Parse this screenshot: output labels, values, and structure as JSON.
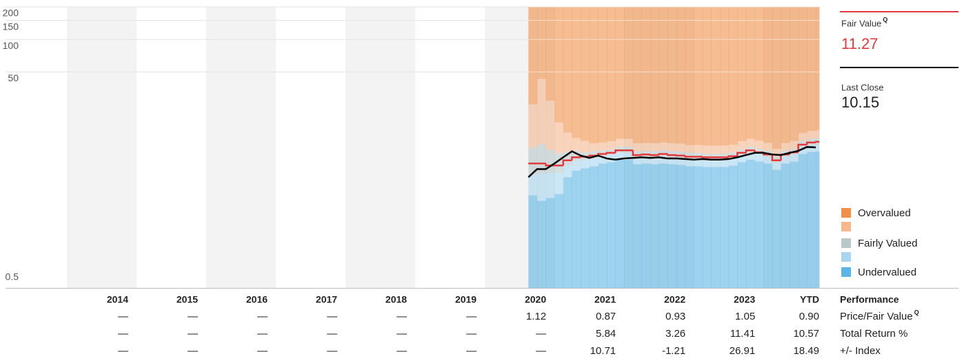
{
  "chart_data": {
    "type": "valuation",
    "ylog": true,
    "ylim": [
      0.5,
      200
    ],
    "yticks": [
      0.5,
      50,
      100,
      150,
      200
    ],
    "grid": true,
    "xlim": [
      2014,
      2024.8
    ],
    "x": [
      2020.625,
      2020.75,
      2020.875,
      2021,
      2021.125,
      2021.25,
      2021.375,
      2021.5,
      2021.625,
      2021.75,
      2021.875,
      2022,
      2022.125,
      2022.25,
      2022.375,
      2022.5,
      2022.625,
      2022.75,
      2022.875,
      2023,
      2023.125,
      2023.25,
      2023.375,
      2023.5,
      2023.625,
      2023.75,
      2023.875,
      2024,
      2024.125,
      2024.25,
      2024.375,
      2024.5,
      2024.625,
      2024.75
    ],
    "price": {
      "color": "#000000",
      "values": [
        5.3,
        6.3,
        6.3,
        7.1,
        8.1,
        9.2,
        8.4,
        8.0,
        8.4,
        7.9,
        7.7,
        7.9,
        8.0,
        8.1,
        8.0,
        8.1,
        7.9,
        7.9,
        7.8,
        7.7,
        7.8,
        7.7,
        7.7,
        7.8,
        8.1,
        8.5,
        8.9,
        8.9,
        8.6,
        8.5,
        8.9,
        9.3,
        10.1,
        10.0
      ]
    },
    "fair_value": {
      "color": "#e5383b",
      "values": [
        7.1,
        7.1,
        6.8,
        6.8,
        7.6,
        8.1,
        8.2,
        8.4,
        8.7,
        8.9,
        9.4,
        9.4,
        8.5,
        8.6,
        8.5,
        8.7,
        8.5,
        8.4,
        8.2,
        8.2,
        8.1,
        8.1,
        8.1,
        8.3,
        8.9,
        9.4,
        9.0,
        8.6,
        7.6,
        8.6,
        9.0,
        10.6,
        11.1,
        11.27
      ]
    },
    "thresholds": [
      [
        3.6,
        3.2,
        3.4,
        3.7,
        5.3,
        6.1,
        6.4,
        6.7,
        7.1,
        7.3,
        7.7,
        7.7,
        7.0,
        7.1,
        7.0,
        7.1,
        7.0,
        6.9,
        6.7,
        6.7,
        6.6,
        6.6,
        6.6,
        6.8,
        7.3,
        7.7,
        7.4,
        7.1,
        6.2,
        7.1,
        7.4,
        8.7,
        9.1,
        9.2
      ],
      [
        5.7,
        5.7,
        5.8,
        5.8,
        6.8,
        7.5,
        7.6,
        7.9,
        8.3,
        8.5,
        8.9,
        8.9,
        8.1,
        8.2,
        8.1,
        8.3,
        8.1,
        8.0,
        7.8,
        7.8,
        7.7,
        7.7,
        7.7,
        7.9,
        8.5,
        8.9,
        8.6,
        8.2,
        7.2,
        8.2,
        8.6,
        10.1,
        10.5,
        10.7
      ],
      [
        9.9,
        10.7,
        9.5,
        8.8,
        9.1,
        9.3,
        9.0,
        9.2,
        9.4,
        9.6,
        10.2,
        10.2,
        9.2,
        9.3,
        9.2,
        9.4,
        9.2,
        9.1,
        8.9,
        8.9,
        8.7,
        8.7,
        8.7,
        9.0,
        9.6,
        10.2,
        9.7,
        9.3,
        8.2,
        9.3,
        9.7,
        11.4,
        12.0,
        12.2
      ],
      [
        25,
        43,
        27,
        17,
        13.7,
        12.2,
        11.5,
        10.9,
        11.1,
        11.4,
        12.0,
        12.0,
        10.9,
        11.0,
        10.9,
        11.1,
        10.9,
        10.8,
        10.5,
        10.5,
        10.4,
        10.4,
        10.4,
        10.6,
        11.4,
        12.0,
        11.5,
        11.0,
        9.7,
        11.0,
        11.5,
        13.6,
        14.2,
        14.4
      ]
    ],
    "bands": [
      {
        "name": "Undervalued",
        "color": "#5db5e6"
      },
      {
        "name": null,
        "color": "#a9d5ef"
      },
      {
        "name": "Fairly Valued",
        "color": "#b9c8c9"
      },
      {
        "name": null,
        "color": "#f5b88f"
      },
      {
        "name": "Overvalued",
        "color": "#f0914b"
      }
    ]
  },
  "summary": {
    "fair_value": {
      "label": "Fair Value",
      "badge": "Q",
      "value": "11.27"
    },
    "last_close": {
      "label": "Last Close",
      "value": "10.15"
    }
  },
  "table": {
    "title": "Performance",
    "columns": [
      "2014",
      "2015",
      "2016",
      "2017",
      "2018",
      "2019",
      "2020",
      "2021",
      "2022",
      "2023",
      "YTD"
    ],
    "rows": [
      {
        "label": "Price/Fair Value",
        "badge": "Q",
        "cells": [
          "—",
          "—",
          "—",
          "—",
          "—",
          "—",
          "1.12",
          "0.87",
          "0.93",
          "1.05",
          "0.90"
        ]
      },
      {
        "label": "Total Return %",
        "cells": [
          "—",
          "—",
          "—",
          "—",
          "—",
          "—",
          "—",
          "5.84",
          "3.26",
          "11.41",
          "10.57"
        ]
      },
      {
        "label": "+/- Index",
        "cells": [
          "—",
          "—",
          "—",
          "—",
          "—",
          "—",
          "—",
          "10.71",
          "-1.21",
          "26.91",
          "18.49"
        ]
      }
    ]
  }
}
